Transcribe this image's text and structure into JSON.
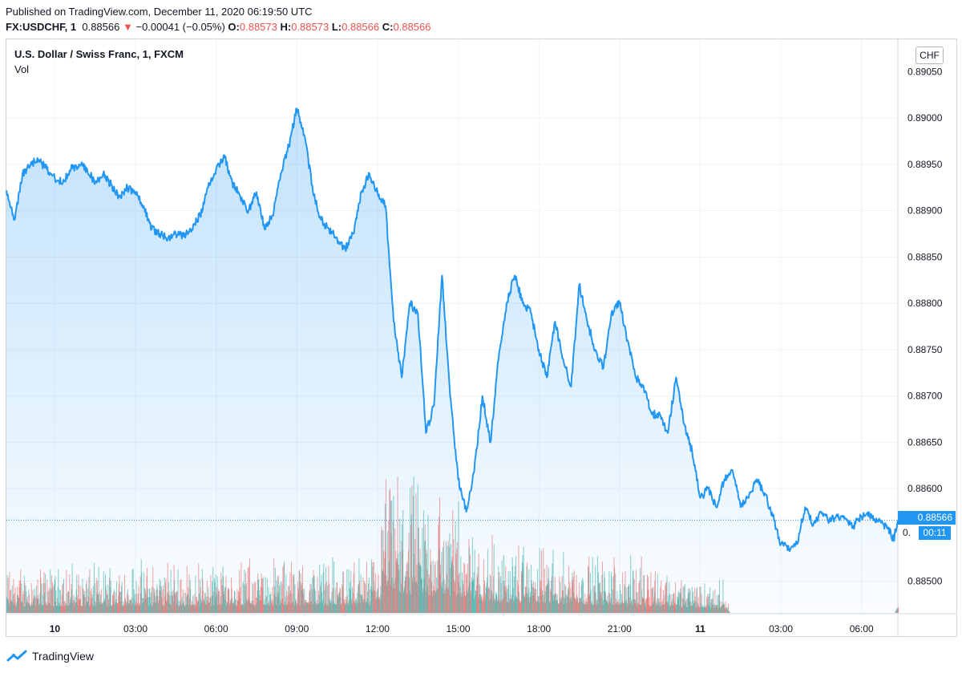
{
  "header": {
    "published": "Published on TradingView.com, December 11, 2020 06:19:50 UTC",
    "symbol": "FX:USDCHF, 1",
    "last": "0.88566",
    "change_arrow": "▼",
    "change": "−0.00041 (−0.05%)",
    "o_label": "O:",
    "o_value": "0.88573",
    "h_label": "H:",
    "h_value": "0.88573",
    "l_label": "L:",
    "l_value": "0.88566",
    "c_label": "C:",
    "c_value": "0.88566"
  },
  "overlay": {
    "title": "U.S. Dollar / Swiss Franc, 1, FXCM",
    "volume_label": "Vol",
    "currency": "CHF",
    "price_tag": "0.88566",
    "timer": "00:11",
    "price_partial": "0."
  },
  "brand": {
    "name": "TradingView"
  },
  "colors": {
    "line": "#2196f3",
    "up_volume": "#26a69a",
    "down_volume": "#ef5350",
    "grid": "#f0f3fa"
  },
  "chart_data": {
    "type": "area",
    "y_ticks": [
      "0.89000",
      "0.88950",
      "0.88900",
      "0.88850",
      "0.88800",
      "0.88750",
      "0.88700",
      "0.88650",
      "0.88600",
      "0.88500"
    ],
    "y_tick_values": [
      0.89,
      0.8895,
      0.889,
      0.8885,
      0.888,
      0.8875,
      0.887,
      0.8865,
      0.886,
      0.885
    ],
    "top_partial_tick": "0.89050",
    "x_ticks": [
      "10",
      "03:00",
      "06:00",
      "09:00",
      "12:00",
      "15:00",
      "18:00",
      "21:00",
      "11",
      "03:00",
      "06:00"
    ],
    "x_tick_hours": [
      0,
      3,
      6,
      9,
      12,
      15,
      18,
      21,
      24,
      27,
      30
    ],
    "x_range_hours": [
      -1.8,
      31.35
    ],
    "ylim": [
      0.88465,
      0.89085
    ],
    "series": [
      {
        "x": [
          -1.8,
          -1.5,
          -1.2,
          -0.9,
          -0.6,
          -0.3,
          0.0,
          0.3,
          0.6,
          0.9,
          1.2,
          1.5,
          1.8,
          2.1,
          2.4,
          2.7,
          3.0,
          3.3,
          3.6,
          3.9,
          4.2,
          4.5,
          4.8,
          5.1,
          5.4,
          5.7,
          6.0,
          6.3,
          6.6,
          6.9,
          7.2,
          7.5,
          7.8,
          8.1,
          8.4,
          8.7,
          9.0,
          9.3,
          9.6,
          9.9,
          10.2,
          10.5,
          10.8,
          11.1,
          11.4,
          11.7,
          12.0,
          12.3,
          12.6,
          12.9,
          13.2,
          13.5,
          13.8,
          14.1,
          14.4,
          14.7,
          15.0,
          15.3,
          15.6,
          15.9,
          16.2,
          16.5,
          16.8,
          17.1,
          17.4,
          17.7,
          18.0,
          18.3,
          18.6,
          18.9,
          19.2,
          19.5,
          19.8,
          20.1,
          20.4,
          20.7,
          21.0,
          21.3,
          21.6,
          21.9,
          22.2,
          22.5,
          22.8,
          23.1,
          23.4,
          23.7,
          24.0,
          24.3,
          24.6,
          24.9,
          25.2,
          25.5,
          25.8,
          26.1,
          26.4,
          26.7,
          27.0,
          27.3,
          27.6,
          27.9,
          28.2,
          28.5,
          28.8,
          29.1,
          29.4,
          29.7,
          30.0,
          30.3,
          30.6,
          30.9,
          31.2,
          31.35
        ],
        "values": [
          0.88922,
          0.8889,
          0.8894,
          0.8895,
          0.88955,
          0.88945,
          0.88935,
          0.8893,
          0.88945,
          0.8895,
          0.88945,
          0.8893,
          0.8894,
          0.88928,
          0.88915,
          0.88925,
          0.8892,
          0.88905,
          0.8888,
          0.88875,
          0.8887,
          0.88875,
          0.88872,
          0.8888,
          0.88895,
          0.88925,
          0.88945,
          0.8896,
          0.8893,
          0.88915,
          0.889,
          0.8892,
          0.8888,
          0.88895,
          0.8894,
          0.8897,
          0.8901,
          0.8898,
          0.8892,
          0.8889,
          0.8888,
          0.8887,
          0.88858,
          0.88875,
          0.8892,
          0.8894,
          0.8892,
          0.88905,
          0.8878,
          0.8872,
          0.888,
          0.8879,
          0.8866,
          0.8869,
          0.8883,
          0.887,
          0.8861,
          0.88575,
          0.8862,
          0.887,
          0.8865,
          0.8874,
          0.888,
          0.8883,
          0.888,
          0.8879,
          0.8875,
          0.8872,
          0.8878,
          0.8874,
          0.8871,
          0.8882,
          0.8878,
          0.8875,
          0.8873,
          0.8879,
          0.888,
          0.8876,
          0.8872,
          0.8871,
          0.8868,
          0.8868,
          0.8866,
          0.8872,
          0.8867,
          0.8864,
          0.8859,
          0.886,
          0.8858,
          0.8861,
          0.8862,
          0.8858,
          0.8859,
          0.8861,
          0.88595,
          0.8857,
          0.8854,
          0.88535,
          0.8854,
          0.8858,
          0.8856,
          0.88575,
          0.88565,
          0.8857,
          0.88568,
          0.8856,
          0.8857,
          0.88572,
          0.88565,
          0.8856,
          0.88545,
          0.88566
        ]
      }
    ],
    "volume": {
      "ylim": [
        0,
        100
      ],
      "bins_hours": [
        -1.8,
        33.0
      ],
      "profile": [
        [
          -1.8,
          18
        ],
        [
          12.0,
          22
        ],
        [
          12.3,
          55
        ],
        [
          15.3,
          45
        ],
        [
          16.0,
          30
        ],
        [
          22.0,
          20
        ],
        [
          24.9,
          12
        ],
        [
          25.1,
          0
        ],
        [
          31.2,
          0
        ],
        [
          31.35,
          4
        ]
      ]
    },
    "last_price_line": 0.88566
  }
}
